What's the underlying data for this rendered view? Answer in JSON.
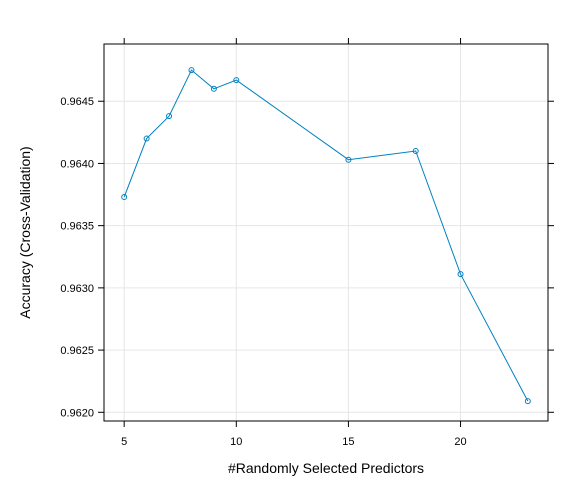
{
  "chart_data": {
    "type": "line",
    "title": "",
    "xlabel": "#Randomly Selected Predictors",
    "ylabel": "Accuracy (Cross-Validation)",
    "xlim": [
      4.1,
      23.9
    ],
    "ylim": [
      0.96193,
      0.96496
    ],
    "x_ticks": [
      5,
      10,
      15,
      20
    ],
    "x_tick_labels": [
      "5",
      "10",
      "15",
      "20"
    ],
    "y_ticks": [
      0.962,
      0.9625,
      0.963,
      0.9635,
      0.964,
      0.9645
    ],
    "y_tick_labels": [
      "0.9620",
      "0.9625",
      "0.9630",
      "0.9635",
      "0.9640",
      "0.9645"
    ],
    "grid": true,
    "series": [
      {
        "color": "#0080c0",
        "x": [
          5,
          6,
          7,
          8,
          9,
          10,
          15,
          18,
          20,
          23
        ],
        "y": [
          0.96373,
          0.9642,
          0.96438,
          0.96475,
          0.9646,
          0.96467,
          0.96403,
          0.9641,
          0.96311,
          0.96209
        ]
      }
    ]
  }
}
